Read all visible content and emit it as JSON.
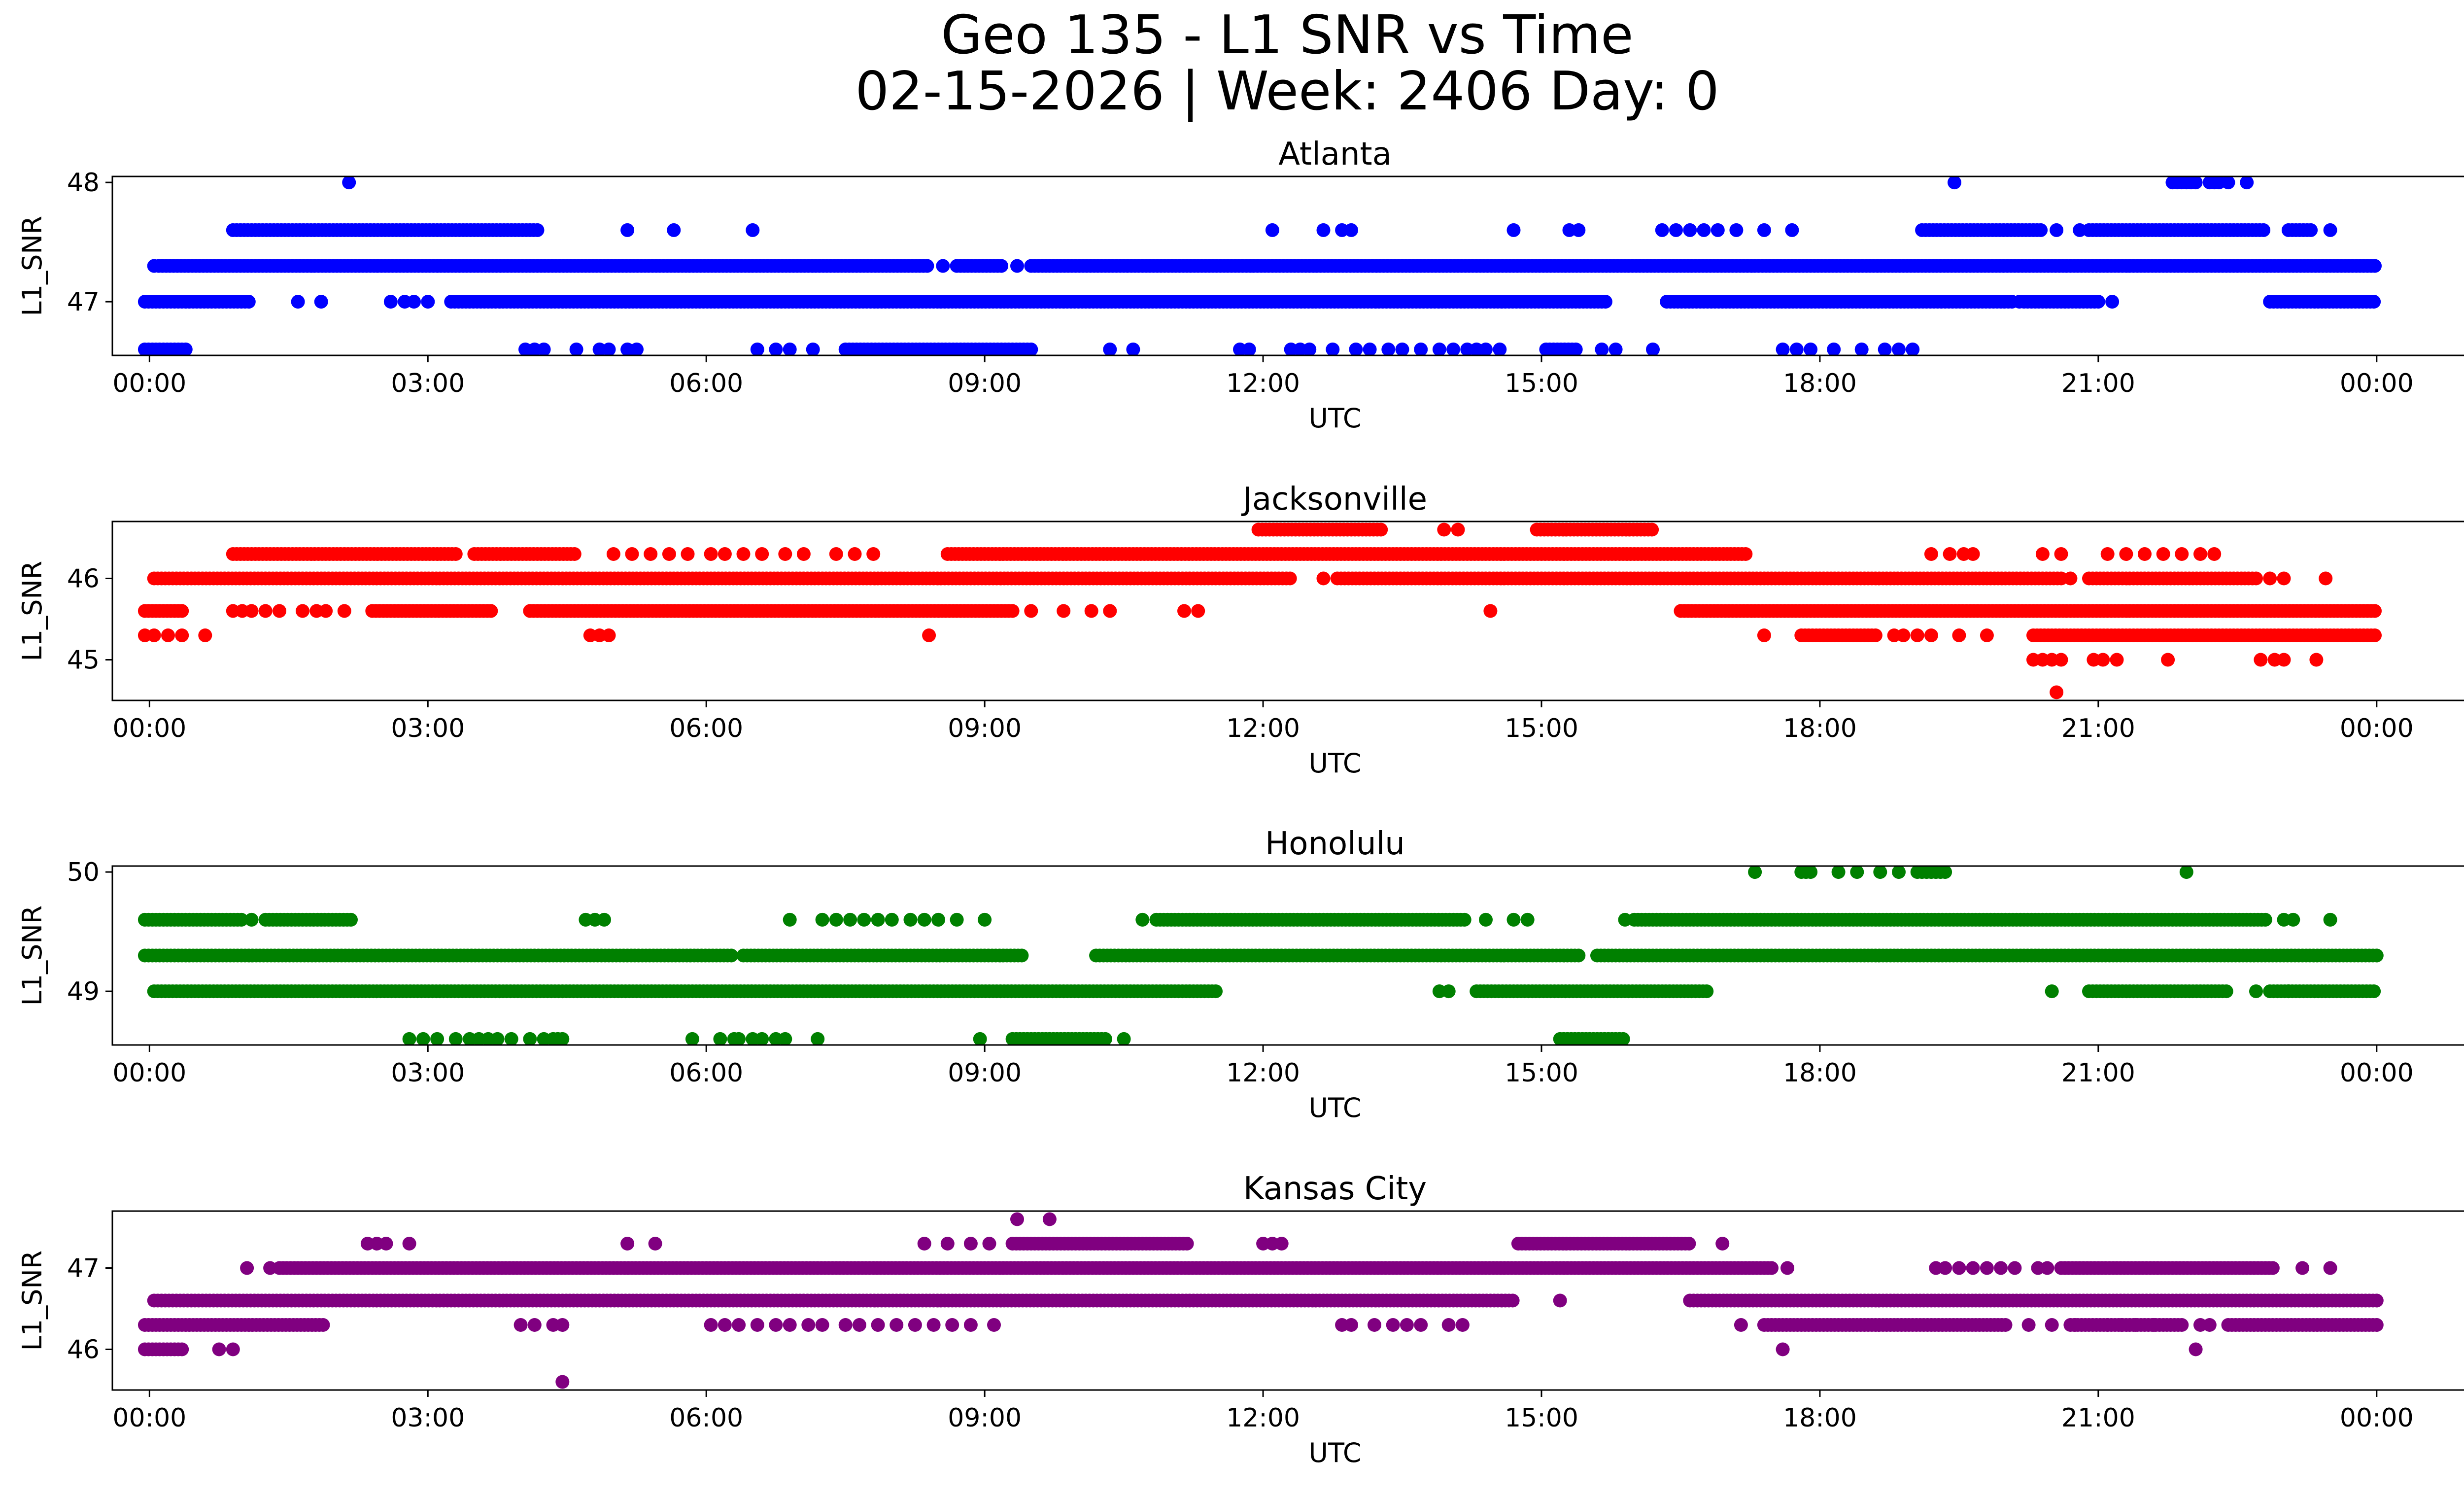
{
  "figure": {
    "title_line1": "Geo 135 - L1 SNR vs Time",
    "title_line2": "02-15-2026 | Week: 2406 Day: 0"
  },
  "chart_data": [
    {
      "type": "scatter",
      "title": "Atlanta",
      "xlabel": "UTC",
      "ylabel": "L1_SNR",
      "color": "#0000ff",
      "xlim": [
        -0.4,
        25.95
      ],
      "ylim": [
        46.55,
        48.05
      ],
      "xticks": [
        0,
        3,
        6,
        9,
        12,
        15,
        18,
        21,
        24
      ],
      "xtick_labels": [
        "00:00",
        "03:00",
        "06:00",
        "09:00",
        "12:00",
        "15:00",
        "18:00",
        "21:00",
        "00:00"
      ],
      "yticks": [
        47,
        48
      ],
      "ytick_labels": [
        "47",
        "48"
      ],
      "levels": [
        {
          "y": 48.0,
          "points": [
            2.15,
            19.45,
            21.8,
            21.85,
            21.9,
            21.95,
            22.0,
            22.05,
            22.2,
            22.25,
            22.3,
            22.4,
            22.6
          ]
        },
        {
          "y": 47.6,
          "segments": [
            [
              0.9,
              4.2
            ],
            [
              19.1,
              20.4
            ],
            [
              20.9,
              22.8
            ],
            [
              23.05,
              23.3
            ]
          ],
          "points": [
            5.15,
            5.65,
            6.5,
            12.1,
            12.65,
            12.85,
            12.95,
            14.7,
            15.3,
            15.4,
            16.3,
            16.45,
            16.6,
            16.75,
            16.9,
            17.1,
            17.4,
            17.7,
            20.55,
            20.8,
            23.5
          ]
        },
        {
          "y": 47.3,
          "segments": [
            [
              0.1,
              8.4
            ],
            [
              8.7,
              9.2
            ],
            [
              9.5,
              24.0
            ]
          ],
          "points": [
            8.55,
            9.35,
            0.05
          ]
        },
        {
          "y": 47.0,
          "segments": [
            [
              -0.05,
              1.1
            ],
            [
              3.25,
              15.7
            ],
            [
              16.35,
              20.1
            ],
            [
              20.2,
              21.0
            ],
            [
              22.85,
              24.0
            ]
          ],
          "points": [
            1.6,
            1.85,
            2.6,
            2.75,
            2.85,
            3.0,
            20.15,
            21.15
          ]
        },
        {
          "y": 46.6,
          "segments": [
            [
              -0.05,
              0.4
            ],
            [
              7.5,
              9.5
            ],
            [
              15.05,
              15.4
            ]
          ],
          "points": [
            4.05,
            4.15,
            4.25,
            4.6,
            4.85,
            4.95,
            5.15,
            5.25,
            6.55,
            6.75,
            6.9,
            7.15,
            10.35,
            10.6,
            11.75,
            11.85,
            12.3,
            12.4,
            12.5,
            12.75,
            13.0,
            13.15,
            13.35,
            13.5,
            13.7,
            13.9,
            14.05,
            14.2,
            14.3,
            14.4,
            14.55,
            15.65,
            15.8,
            16.2,
            17.6,
            17.75,
            17.9,
            18.15,
            18.45,
            18.7,
            18.85,
            19.0
          ]
        }
      ]
    },
    {
      "type": "scatter",
      "title": "Jacksonville",
      "xlabel": "UTC",
      "ylabel": "L1_SNR",
      "color": "#ff0000",
      "xlim": [
        -0.4,
        25.95
      ],
      "ylim": [
        44.5,
        46.7
      ],
      "xticks": [
        0,
        3,
        6,
        9,
        12,
        15,
        18,
        21,
        24
      ],
      "xtick_labels": [
        "00:00",
        "03:00",
        "06:00",
        "09:00",
        "12:00",
        "15:00",
        "18:00",
        "21:00",
        "00:00"
      ],
      "yticks": [
        45,
        46
      ],
      "ytick_labels": [
        "45",
        "46"
      ],
      "levels": [
        {
          "y": 46.6,
          "segments": [
            [
              11.95,
              13.3
            ],
            [
              14.95,
              16.2
            ]
          ],
          "points": [
            13.95,
            14.1
          ]
        },
        {
          "y": 46.3,
          "segments": [
            [
              0.9,
              3.3
            ],
            [
              3.5,
              4.6
            ],
            [
              8.6,
              17.2
            ]
          ],
          "points": [
            5.0,
            5.2,
            5.4,
            5.6,
            5.8,
            6.05,
            6.2,
            6.4,
            6.6,
            6.85,
            7.05,
            7.4,
            7.6,
            7.8,
            19.2,
            19.4,
            19.55,
            19.65,
            20.4,
            20.6,
            21.1,
            21.3,
            21.5,
            21.7,
            21.9,
            22.1,
            22.25
          ]
        },
        {
          "y": 46.0,
          "segments": [
            [
              0.05,
              12.3
            ],
            [
              12.8,
              20.6
            ],
            [
              20.9,
              22.7
            ]
          ],
          "points": [
            12.65,
            20.7,
            22.85,
            23.0,
            23.45
          ]
        },
        {
          "y": 45.6,
          "segments": [
            [
              -0.05,
              0.35
            ],
            [
              2.4,
              3.7
            ],
            [
              4.1,
              9.3
            ],
            [
              16.5,
              24.0
            ]
          ],
          "points": [
            0.9,
            1.0,
            1.1,
            1.25,
            1.4,
            1.65,
            1.8,
            1.9,
            2.1,
            9.5,
            9.85,
            10.15,
            10.35,
            11.15,
            11.3,
            14.45
          ]
        },
        {
          "y": 45.3,
          "segments": [
            [
              17.8,
              18.6
            ],
            [
              20.3,
              24.0
            ]
          ],
          "points": [
            -0.05,
            0.05,
            0.2,
            0.35,
            0.6,
            4.75,
            4.85,
            4.95,
            8.4,
            17.4,
            18.8,
            18.9,
            19.05,
            19.2,
            19.5,
            19.8
          ]
        },
        {
          "y": 45.0,
          "points": [
            20.3,
            20.4,
            20.5,
            20.6,
            20.95,
            21.05,
            21.2,
            21.75,
            22.75,
            22.9,
            23.0,
            23.35
          ]
        },
        {
          "y": 44.6,
          "points": [
            20.55
          ]
        }
      ]
    },
    {
      "type": "scatter",
      "title": "Honolulu",
      "xlabel": "UTC",
      "ylabel": "L1_SNR",
      "color": "#008000",
      "xlim": [
        -0.4,
        25.95
      ],
      "ylim": [
        48.55,
        50.05
      ],
      "xticks": [
        0,
        3,
        6,
        9,
        12,
        15,
        18,
        21,
        24
      ],
      "xtick_labels": [
        "00:00",
        "03:00",
        "06:00",
        "09:00",
        "12:00",
        "15:00",
        "18:00",
        "21:00",
        "00:00"
      ],
      "yticks": [
        49,
        50
      ],
      "ytick_labels": [
        "49",
        "50"
      ],
      "levels": [
        {
          "y": 50.0,
          "points": [
            17.3,
            17.8,
            17.85,
            17.9,
            18.2,
            18.4,
            18.65,
            18.85,
            19.05,
            19.1,
            19.15,
            19.2,
            19.25,
            19.3,
            19.35,
            21.95
          ]
        },
        {
          "y": 49.6,
          "segments": [
            [
              -0.05,
              1.0
            ],
            [
              1.25,
              2.2
            ],
            [
              10.85,
              14.2
            ],
            [
              16.0,
              22.8
            ]
          ],
          "points": [
            1.1,
            4.7,
            4.8,
            4.9,
            6.9,
            7.25,
            7.4,
            7.55,
            7.7,
            7.85,
            8.0,
            8.2,
            8.35,
            8.5,
            8.7,
            9.0,
            10.7,
            14.4,
            14.7,
            14.85,
            15.9,
            23.0,
            23.1,
            23.5
          ]
        },
        {
          "y": 49.3,
          "segments": [
            [
              -0.05,
              6.3
            ],
            [
              6.4,
              9.4
            ],
            [
              10.2,
              15.4
            ],
            [
              15.6,
              24.0
            ]
          ]
        },
        {
          "y": 49.0,
          "segments": [
            [
              0.05,
              11.5
            ],
            [
              14.3,
              16.8
            ],
            [
              20.9,
              22.4
            ],
            [
              22.85,
              24.0
            ]
          ],
          "points": [
            13.9,
            14.0,
            20.5,
            22.7,
            23.05
          ]
        },
        {
          "y": 48.6,
          "segments": [
            [
              9.3,
              10.3
            ],
            [
              15.2,
              15.9
            ]
          ],
          "points": [
            2.8,
            2.95,
            3.1,
            3.3,
            3.45,
            3.55,
            3.65,
            3.75,
            3.9,
            4.1,
            4.25,
            4.35,
            4.4,
            4.45,
            5.85,
            6.15,
            6.3,
            6.35,
            6.5,
            6.6,
            6.75,
            6.85,
            7.2,
            8.95,
            10.5
          ]
        }
      ]
    },
    {
      "type": "scatter",
      "title": "Kansas City",
      "xlabel": "UTC",
      "ylabel": "L1_SNR",
      "color": "#800080",
      "xlim": [
        -0.4,
        25.95
      ],
      "ylim": [
        45.5,
        47.7
      ],
      "xticks": [
        0,
        3,
        6,
        9,
        12,
        15,
        18,
        21,
        24
      ],
      "xtick_labels": [
        "00:00",
        "03:00",
        "06:00",
        "09:00",
        "12:00",
        "15:00",
        "18:00",
        "21:00",
        "00:00"
      ],
      "yticks": [
        46,
        47
      ],
      "ytick_labels": [
        "46",
        "47"
      ],
      "levels": [
        {
          "y": 47.6,
          "points": [
            9.35,
            9.7
          ]
        },
        {
          "y": 47.3,
          "segments": [
            [
              9.3,
              11.2
            ],
            [
              14.75,
              16.6
            ]
          ],
          "points": [
            2.35,
            2.45,
            2.55,
            2.8,
            5.15,
            5.45,
            8.35,
            8.6,
            8.85,
            9.05,
            12.0,
            12.1,
            12.2,
            16.95
          ]
        },
        {
          "y": 47.0,
          "segments": [
            [
              1.4,
              17.5
            ],
            [
              20.6,
              22.9
            ]
          ],
          "points": [
            1.05,
            1.3,
            17.65,
            19.25,
            19.35,
            19.5,
            19.65,
            19.8,
            19.95,
            20.1,
            20.35,
            20.45,
            23.2,
            23.5
          ]
        },
        {
          "y": 46.6,
          "segments": [
            [
              0.05,
              14.7
            ],
            [
              16.6,
              24.0
            ]
          ],
          "points": [
            15.2
          ]
        },
        {
          "y": 46.3,
          "segments": [
            [
              -0.05,
              1.9
            ],
            [
              17.4,
              20.0
            ],
            [
              20.7,
              21.9
            ],
            [
              22.4,
              24.0
            ]
          ],
          "points": [
            4.0,
            4.15,
            4.35,
            4.45,
            6.05,
            6.2,
            6.35,
            6.55,
            6.75,
            6.9,
            7.1,
            7.25,
            7.5,
            7.65,
            7.85,
            8.05,
            8.25,
            8.45,
            8.65,
            8.85,
            9.1,
            12.85,
            12.95,
            13.2,
            13.4,
            13.55,
            13.7,
            14.0,
            14.15,
            17.15,
            20.25,
            20.5,
            20.75,
            21.1,
            21.25,
            21.4,
            21.6,
            22.1,
            22.2
          ]
        },
        {
          "y": 46.0,
          "segments": [
            [
              -0.05,
              0.35
            ]
          ],
          "points": [
            0.75,
            0.9,
            17.6,
            22.05
          ]
        },
        {
          "y": 45.6,
          "points": [
            4.45
          ]
        }
      ]
    }
  ]
}
